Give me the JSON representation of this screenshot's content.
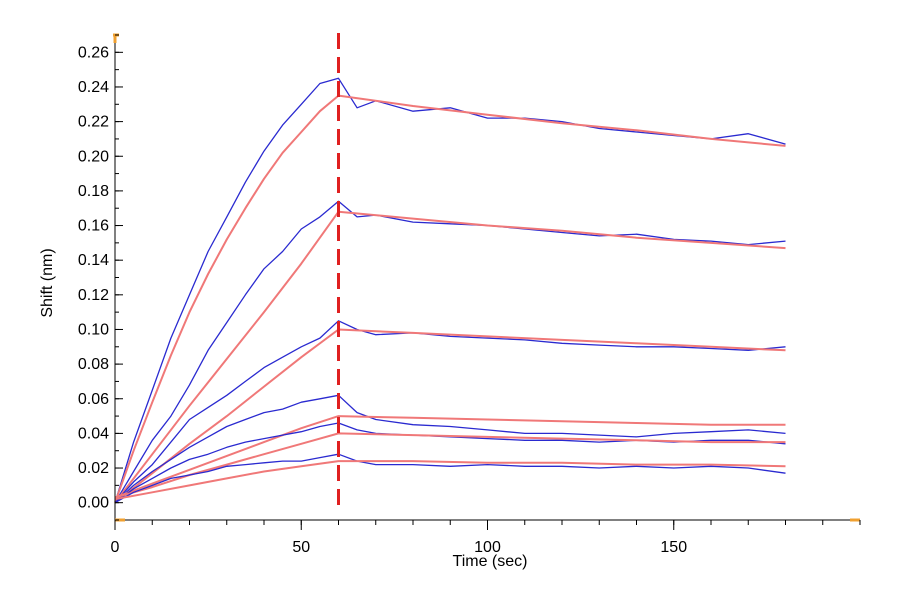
{
  "chart_data": {
    "type": "line",
    "xlabel": "Time (sec)",
    "ylabel": "Shift (nm)",
    "xlim": [
      0,
      200
    ],
    "ylim": [
      -0.01,
      0.27
    ],
    "x_ticks": [
      0,
      50,
      100,
      150
    ],
    "y_ticks": [
      0.0,
      0.02,
      0.04,
      0.06,
      0.08,
      0.1,
      0.12,
      0.14,
      0.16,
      0.18,
      0.2,
      0.22,
      0.24,
      0.26
    ],
    "y_tick_labels": [
      "0.00",
      "0.02",
      "0.04",
      "0.06",
      "0.08",
      "0.10",
      "0.12",
      "0.14",
      "0.16",
      "0.18",
      "0.20",
      "0.22",
      "0.24",
      "0.26"
    ],
    "vertical_marker": {
      "x": 60,
      "style": "dashed",
      "color": "#e02020"
    },
    "grid": false,
    "colors": {
      "measured": "#2a2ad0",
      "fit": "#f07878",
      "axis_end": "#f0a030"
    },
    "series": [
      {
        "kind": "measured",
        "x": [
          0,
          5,
          10,
          15,
          20,
          25,
          30,
          35,
          40,
          45,
          50,
          55,
          60,
          65,
          70,
          80,
          90,
          100,
          110,
          120,
          130,
          140,
          150,
          160,
          170,
          180
        ],
        "y": [
          0.0,
          0.035,
          0.065,
          0.095,
          0.12,
          0.145,
          0.165,
          0.185,
          0.203,
          0.218,
          0.23,
          0.242,
          0.245,
          0.228,
          0.232,
          0.226,
          0.228,
          0.222,
          0.222,
          0.22,
          0.216,
          0.214,
          0.212,
          0.21,
          0.213,
          0.207
        ]
      },
      {
        "kind": "fit",
        "x": [
          0,
          5,
          10,
          15,
          20,
          25,
          30,
          35,
          40,
          45,
          50,
          55,
          60,
          80,
          100,
          120,
          140,
          160,
          180
        ],
        "y": [
          0.0,
          0.03,
          0.058,
          0.085,
          0.11,
          0.132,
          0.152,
          0.17,
          0.187,
          0.202,
          0.214,
          0.226,
          0.235,
          0.229,
          0.224,
          0.219,
          0.215,
          0.21,
          0.206
        ]
      },
      {
        "kind": "measured",
        "x": [
          0,
          5,
          10,
          15,
          20,
          25,
          30,
          35,
          40,
          45,
          50,
          55,
          60,
          65,
          70,
          80,
          90,
          100,
          110,
          120,
          130,
          140,
          150,
          160,
          170,
          180
        ],
        "y": [
          0.0,
          0.018,
          0.036,
          0.05,
          0.068,
          0.088,
          0.104,
          0.12,
          0.135,
          0.145,
          0.158,
          0.165,
          0.174,
          0.165,
          0.166,
          0.162,
          0.161,
          0.16,
          0.158,
          0.156,
          0.154,
          0.155,
          0.152,
          0.151,
          0.149,
          0.151
        ]
      },
      {
        "kind": "fit",
        "x": [
          0,
          10,
          20,
          30,
          40,
          50,
          60,
          80,
          100,
          120,
          140,
          160,
          180
        ],
        "y": [
          0.0,
          0.028,
          0.056,
          0.083,
          0.11,
          0.138,
          0.168,
          0.164,
          0.16,
          0.157,
          0.153,
          0.15,
          0.147
        ]
      },
      {
        "kind": "measured",
        "x": [
          0,
          5,
          10,
          15,
          20,
          25,
          30,
          35,
          40,
          45,
          50,
          55,
          60,
          65,
          70,
          80,
          90,
          100,
          110,
          120,
          130,
          140,
          150,
          160,
          170,
          180
        ],
        "y": [
          0.0,
          0.012,
          0.022,
          0.035,
          0.048,
          0.055,
          0.062,
          0.07,
          0.078,
          0.084,
          0.09,
          0.095,
          0.105,
          0.1,
          0.097,
          0.098,
          0.096,
          0.095,
          0.094,
          0.092,
          0.091,
          0.09,
          0.09,
          0.089,
          0.088,
          0.09
        ]
      },
      {
        "kind": "fit",
        "x": [
          0,
          10,
          20,
          30,
          40,
          50,
          60,
          80,
          100,
          120,
          140,
          160,
          180
        ],
        "y": [
          0.0,
          0.017,
          0.034,
          0.05,
          0.067,
          0.084,
          0.1,
          0.098,
          0.096,
          0.094,
          0.092,
          0.09,
          0.088
        ]
      },
      {
        "kind": "measured",
        "x": [
          0,
          5,
          10,
          15,
          20,
          25,
          30,
          35,
          40,
          45,
          50,
          55,
          60,
          65,
          70,
          80,
          90,
          100,
          110,
          120,
          130,
          140,
          150,
          160,
          170,
          180
        ],
        "y": [
          0.0,
          0.01,
          0.018,
          0.025,
          0.032,
          0.038,
          0.044,
          0.048,
          0.052,
          0.054,
          0.058,
          0.06,
          0.062,
          0.052,
          0.048,
          0.045,
          0.044,
          0.042,
          0.04,
          0.04,
          0.039,
          0.038,
          0.04,
          0.041,
          0.042,
          0.04
        ]
      },
      {
        "kind": "fit",
        "x": [
          0,
          10,
          20,
          30,
          40,
          50,
          60,
          80,
          100,
          120,
          140,
          160,
          180
        ],
        "y": [
          0.003,
          0.011,
          0.019,
          0.027,
          0.035,
          0.043,
          0.05,
          0.049,
          0.048,
          0.047,
          0.046,
          0.045,
          0.045
        ]
      },
      {
        "kind": "measured",
        "x": [
          0,
          5,
          10,
          15,
          20,
          25,
          30,
          35,
          40,
          45,
          50,
          55,
          60,
          65,
          70,
          80,
          90,
          100,
          110,
          120,
          130,
          140,
          150,
          160,
          170,
          180
        ],
        "y": [
          0.0,
          0.008,
          0.014,
          0.02,
          0.025,
          0.028,
          0.032,
          0.035,
          0.037,
          0.039,
          0.041,
          0.044,
          0.046,
          0.042,
          0.04,
          0.039,
          0.038,
          0.037,
          0.036,
          0.036,
          0.035,
          0.036,
          0.035,
          0.036,
          0.036,
          0.034
        ]
      },
      {
        "kind": "fit",
        "x": [
          0,
          10,
          20,
          30,
          40,
          50,
          60,
          80,
          100,
          120,
          140,
          160,
          180
        ],
        "y": [
          0.003,
          0.009,
          0.016,
          0.022,
          0.028,
          0.034,
          0.04,
          0.039,
          0.038,
          0.037,
          0.036,
          0.035,
          0.035
        ]
      },
      {
        "kind": "measured",
        "x": [
          0,
          5,
          10,
          15,
          20,
          25,
          30,
          35,
          40,
          45,
          50,
          55,
          60,
          65,
          70,
          80,
          90,
          100,
          110,
          120,
          130,
          140,
          150,
          160,
          170,
          180
        ],
        "y": [
          0.0,
          0.006,
          0.01,
          0.014,
          0.016,
          0.018,
          0.021,
          0.022,
          0.023,
          0.024,
          0.024,
          0.026,
          0.028,
          0.024,
          0.022,
          0.022,
          0.021,
          0.022,
          0.021,
          0.021,
          0.02,
          0.021,
          0.02,
          0.021,
          0.02,
          0.017
        ]
      },
      {
        "kind": "fit",
        "x": [
          0,
          10,
          20,
          30,
          40,
          50,
          60,
          80,
          100,
          120,
          140,
          160,
          180
        ],
        "y": [
          0.002,
          0.006,
          0.01,
          0.014,
          0.018,
          0.021,
          0.024,
          0.024,
          0.023,
          0.023,
          0.022,
          0.022,
          0.021
        ]
      }
    ]
  }
}
